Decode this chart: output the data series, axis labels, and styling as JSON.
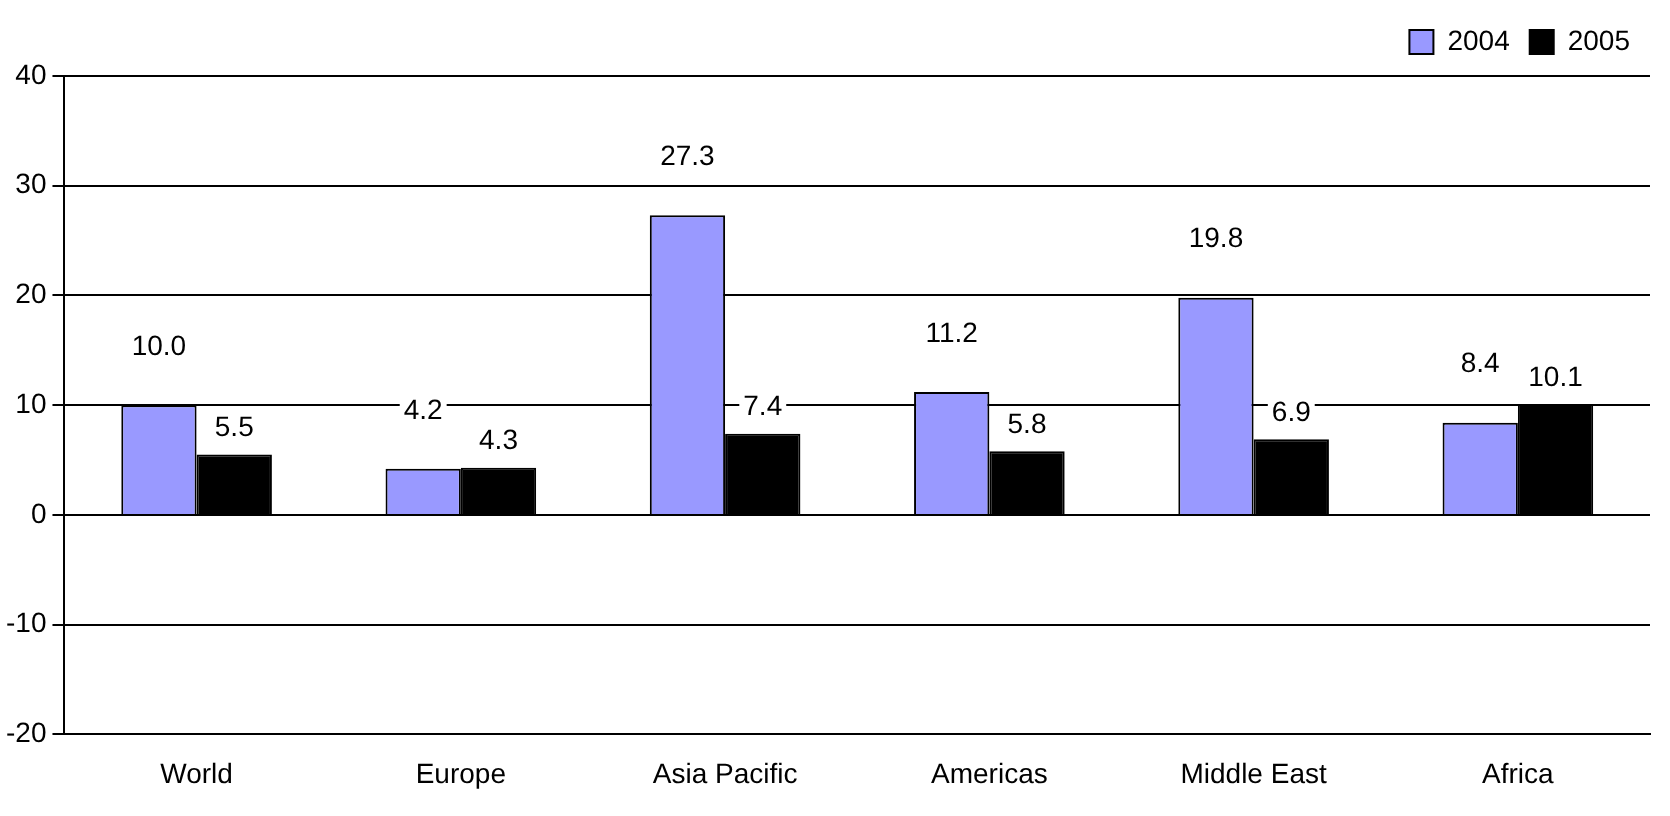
{
  "chart_data": {
    "type": "bar",
    "categories": [
      "World",
      "Europe",
      "Asia Pacific",
      "Americas",
      "Middle East",
      "Africa"
    ],
    "series": [
      {
        "name": "2004",
        "color": "#9999ff",
        "values": [
          10.0,
          4.2,
          27.3,
          11.2,
          19.8,
          8.4
        ],
        "value_labels": [
          "10.0",
          "4.2",
          "27.3",
          "11.2",
          "19.8",
          "8.4"
        ]
      },
      {
        "name": "2005",
        "color": "#000000",
        "values": [
          5.5,
          4.3,
          7.4,
          5.8,
          6.9,
          10.1
        ],
        "value_labels": [
          "5.5",
          "4.3",
          "7.4",
          "5.8",
          "6.9",
          "10.1"
        ]
      }
    ],
    "ylim": [
      -20,
      40
    ],
    "yticks": [
      -20,
      -10,
      0,
      10,
      20,
      30,
      40
    ],
    "grid": "y",
    "legend": "top right"
  }
}
